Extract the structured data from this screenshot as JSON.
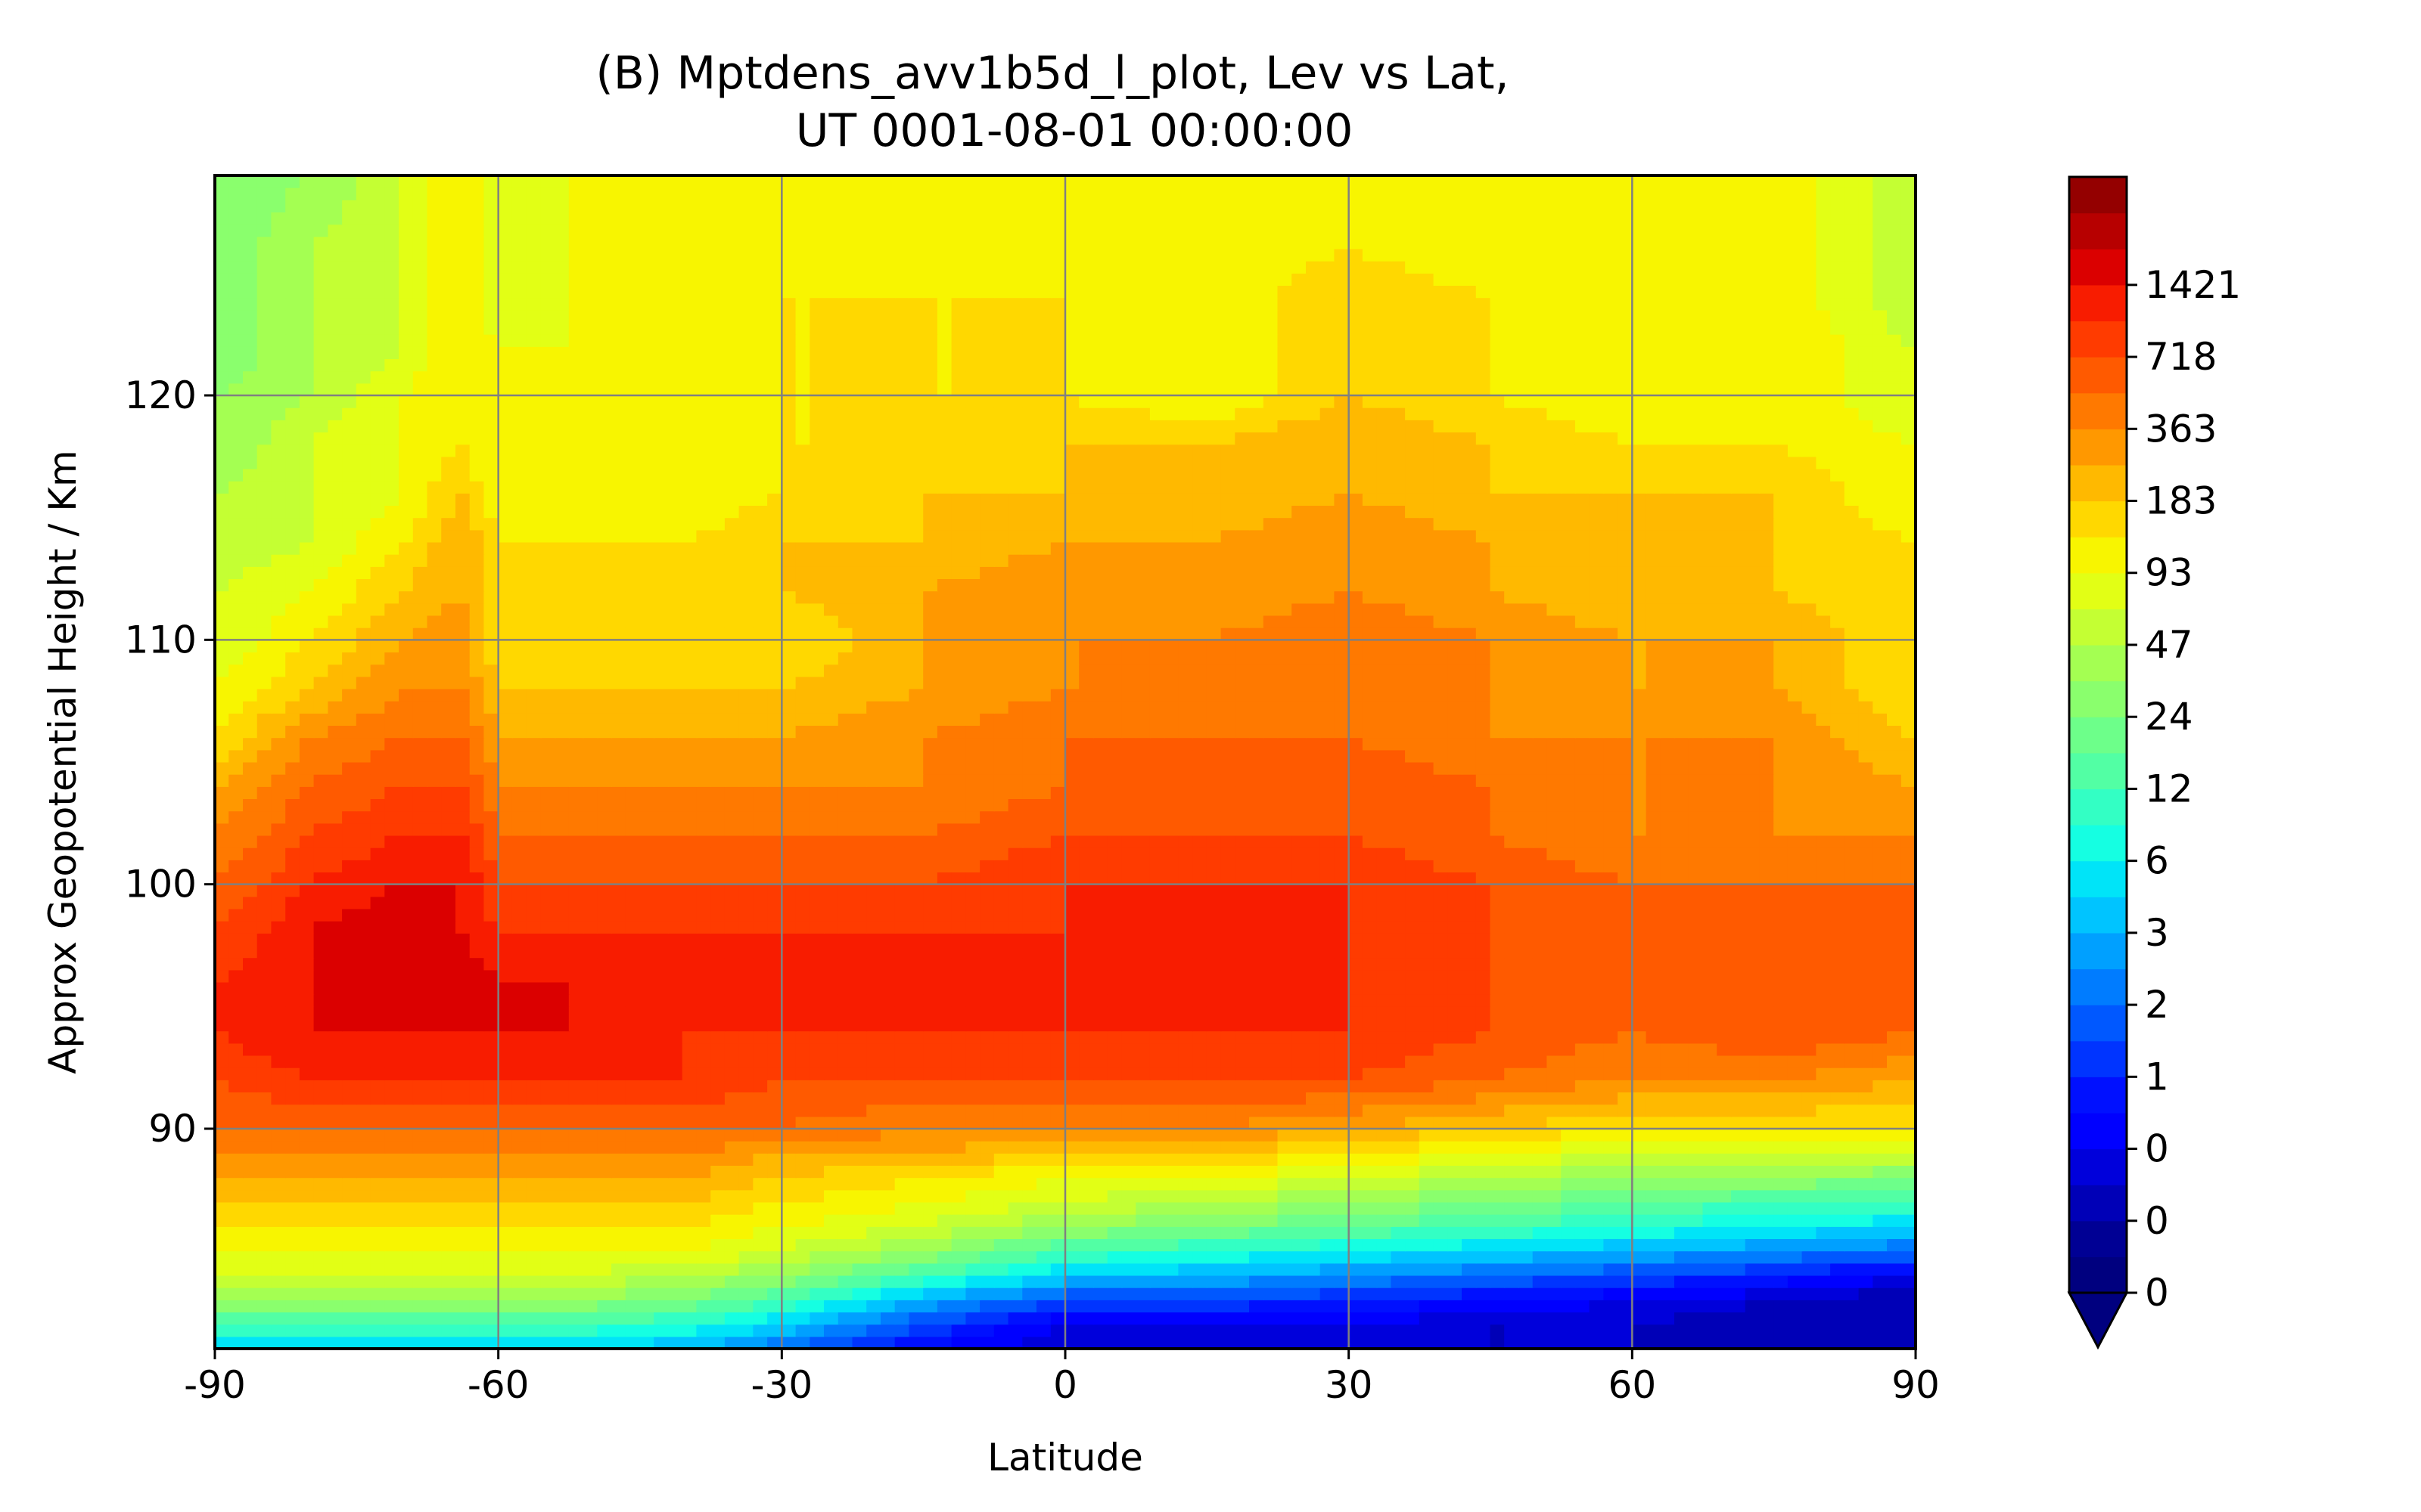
{
  "chart_data": {
    "type": "heatmap",
    "title": [
      "(B) Mptdens_avv1b5d_l_plot, Lev vs Lat,",
      "UT 0001-08-01 00:00:00"
    ],
    "xlabel": "Latitude",
    "ylabel": "Approx Geopotential Height / Km",
    "xlim": [
      -90,
      90
    ],
    "ylim": [
      81,
      129
    ],
    "x_ticks": [
      -90,
      -60,
      -30,
      0,
      30,
      60,
      90
    ],
    "x_tick_labels": [
      "-90",
      "-60",
      "-30",
      "0",
      "30",
      "60",
      "90"
    ],
    "y_ticks": [
      90,
      100,
      110,
      120
    ],
    "y_tick_labels": [
      "90",
      "100",
      "110",
      "120"
    ],
    "grid": true,
    "colormap": "jet",
    "colorbar": {
      "labels": [
        "0",
        "0",
        "0",
        "1",
        "2",
        "3",
        "6",
        "12",
        "24",
        "47",
        "93",
        "183",
        "363",
        "718",
        "1421"
      ],
      "extend": "min",
      "colors": [
        "#00007f",
        "#000094",
        "#0000b7",
        "#0000db",
        "#0000ff",
        "#0010ff",
        "#0034ff",
        "#0058ff",
        "#007cff",
        "#00a0ff",
        "#00c4ff",
        "#00e4f8",
        "#15ffe2",
        "#33ffc4",
        "#52ffa4",
        "#6dff8a",
        "#8aff6d",
        "#a4ff52",
        "#c4ff33",
        "#e2ff15",
        "#f8f500",
        "#ffd800",
        "#ffb900",
        "#ff9800",
        "#ff7900",
        "#ff5a00",
        "#ff3b00",
        "#f81c00",
        "#db0000",
        "#b70000",
        "#940000"
      ]
    },
    "field_description_levels": "contour levels index 0-30 (index 2k corresponds to colorbar label k)",
    "latitudes": [
      -90,
      -80,
      -70,
      -64,
      -60,
      -52,
      -40,
      -30,
      -15,
      0,
      15,
      30,
      45,
      60,
      75,
      90
    ],
    "heights": [
      81,
      82,
      83,
      84,
      85,
      86,
      87,
      88,
      89,
      90,
      92,
      94,
      96,
      98,
      100,
      102,
      104,
      106,
      108,
      110,
      112,
      114,
      116,
      118,
      120,
      122,
      124,
      126,
      129
    ],
    "levels": [
      [
        11,
        11,
        11,
        11,
        11,
        11,
        10,
        8,
        5,
        3,
        3,
        3,
        3,
        3,
        3,
        3
      ],
      [
        14,
        14,
        14,
        14,
        14,
        14,
        13,
        11,
        7,
        4,
        4,
        4,
        3,
        3,
        2,
        2
      ],
      [
        17,
        17,
        17,
        17,
        17,
        17,
        16,
        14,
        10,
        7,
        7,
        6,
        5,
        4,
        3,
        2
      ],
      [
        19,
        19,
        19,
        19,
        19,
        19,
        18,
        17,
        14,
        11,
        10,
        9,
        8,
        7,
        6,
        4
      ],
      [
        20,
        20,
        20,
        20,
        20,
        20,
        20,
        19,
        17,
        14,
        13,
        12,
        11,
        10,
        9,
        8
      ],
      [
        21,
        21,
        21,
        21,
        21,
        21,
        21,
        20,
        19,
        17,
        16,
        15,
        14,
        13,
        12,
        11
      ],
      [
        22,
        22,
        22,
        22,
        22,
        22,
        22,
        21,
        20,
        19,
        18,
        17,
        16,
        15,
        14,
        14
      ],
      [
        23,
        23,
        23,
        23,
        23,
        23,
        23,
        22,
        21,
        20,
        20,
        19,
        18,
        17,
        17,
        16
      ],
      [
        24,
        24,
        24,
        24,
        24,
        24,
        24,
        23,
        23,
        22,
        22,
        21,
        20,
        19,
        19,
        19
      ],
      [
        25,
        25,
        25,
        25,
        25,
        25,
        25,
        25,
        24,
        24,
        24,
        23,
        22,
        21,
        21,
        21
      ],
      [
        26,
        27,
        27,
        27,
        27,
        27,
        27,
        26,
        26,
        26,
        26,
        26,
        25,
        24,
        24,
        23
      ],
      [
        27,
        28,
        28,
        28,
        28,
        28,
        27,
        27,
        27,
        27,
        27,
        27,
        26,
        25,
        26,
        25
      ],
      [
        27,
        28,
        29,
        29,
        28,
        28,
        27,
        27,
        27,
        28,
        27,
        27,
        26,
        25,
        26,
        26
      ],
      [
        26,
        28,
        29,
        28,
        27,
        27,
        27,
        27,
        27,
        27,
        27,
        27,
        26,
        25,
        25,
        26
      ],
      [
        25,
        27,
        28,
        28,
        26,
        26,
        26,
        26,
        26,
        27,
        27,
        27,
        26,
        25,
        25,
        25
      ],
      [
        24,
        26,
        27,
        27,
        25,
        25,
        25,
        25,
        25,
        26,
        26,
        26,
        25,
        24,
        24,
        24
      ],
      [
        23,
        25,
        26,
        26,
        24,
        24,
        24,
        24,
        24,
        25,
        25,
        26,
        25,
        24,
        24,
        23
      ],
      [
        21,
        24,
        25,
        25,
        23,
        23,
        23,
        23,
        24,
        25,
        25,
        25,
        24,
        24,
        24,
        22
      ],
      [
        20,
        22,
        24,
        24,
        22,
        22,
        22,
        22,
        23,
        24,
        24,
        25,
        24,
        23,
        23,
        21
      ],
      [
        19,
        21,
        23,
        24,
        21,
        21,
        21,
        21,
        23,
        24,
        24,
        25,
        24,
        23,
        23,
        21
      ],
      [
        19,
        20,
        22,
        23,
        21,
        21,
        21,
        22,
        23,
        24,
        23,
        24,
        23,
        22,
        22,
        21
      ],
      [
        18,
        19,
        21,
        23,
        21,
        21,
        21,
        22,
        22,
        23,
        23,
        24,
        23,
        22,
        22,
        21
      ],
      [
        18,
        19,
        20,
        22,
        20,
        20,
        20,
        21,
        22,
        22,
        22,
        23,
        22,
        22,
        22,
        20
      ],
      [
        17,
        19,
        20,
        21,
        20,
        20,
        20,
        21,
        21,
        22,
        22,
        23,
        22,
        21,
        21,
        20
      ],
      [
        17,
        18,
        20,
        21,
        20,
        20,
        20,
        21,
        21,
        21,
        20,
        22,
        21,
        20,
        21,
        19
      ],
      [
        16,
        18,
        19,
        21,
        20,
        20,
        20,
        21,
        21,
        21,
        20,
        22,
        21,
        20,
        21,
        19
      ],
      [
        16,
        18,
        19,
        21,
        19,
        20,
        20,
        21,
        21,
        21,
        20,
        22,
        21,
        20,
        21,
        18
      ],
      [
        16,
        18,
        19,
        21,
        19,
        20,
        20,
        20,
        21,
        20,
        20,
        21,
        20,
        20,
        21,
        18
      ],
      [
        16,
        17,
        19,
        21,
        19,
        20,
        20,
        20,
        21,
        20,
        20,
        21,
        20,
        20,
        21,
        18
      ]
    ]
  }
}
